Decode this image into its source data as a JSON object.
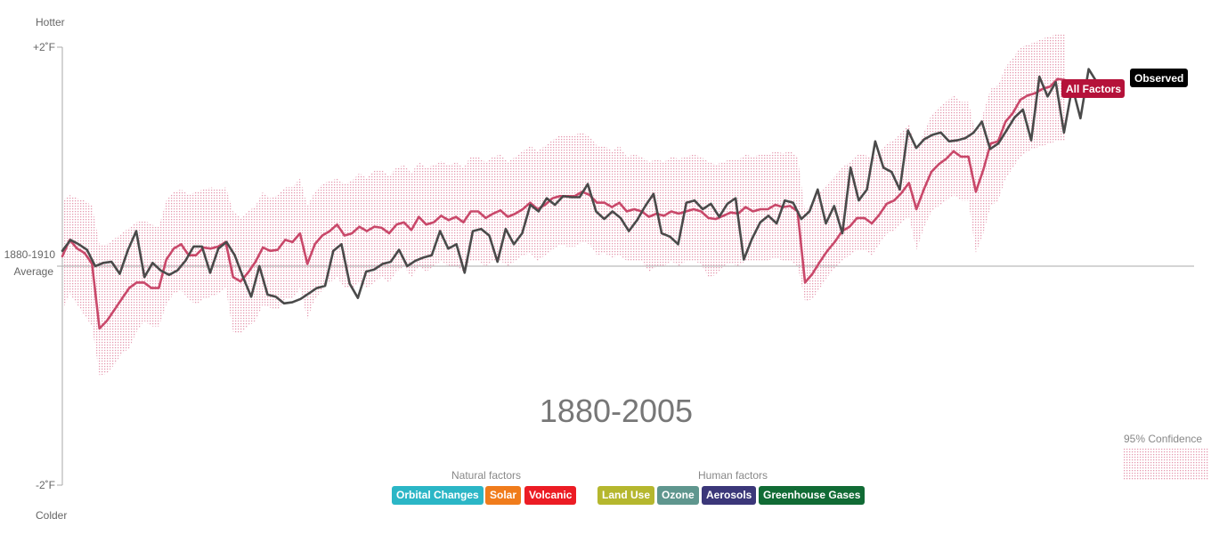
{
  "axis": {
    "top_label": "Hotter",
    "bottom_label": "Colder",
    "top_tick": "+2˚F",
    "bottom_tick": "-2˚F",
    "baseline_line1": "1880-1910",
    "baseline_line2": "Average"
  },
  "year_range_label": "1880-2005",
  "tags": {
    "all_factors": "All Factors",
    "observed": "Observed"
  },
  "colors": {
    "all_factors": "#c9486a",
    "observed": "#4a4a4a",
    "confidence": "#e59ab0",
    "all_factors_tag": "#b5123a",
    "observed_tag": "#000000"
  },
  "legend": {
    "natural_label": "Natural factors",
    "human_label": "Human factors",
    "natural": [
      {
        "label": "Orbital Changes",
        "color": "#2bb6c6"
      },
      {
        "label": "Solar",
        "color": "#f07c1c"
      },
      {
        "label": "Volcanic",
        "color": "#ec1c24"
      }
    ],
    "human": [
      {
        "label": "Land Use",
        "color": "#b5b72e"
      },
      {
        "label": "Ozone",
        "color": "#5f968e"
      },
      {
        "label": "Aerosols",
        "color": "#3b3779"
      },
      {
        "label": "Greenhouse Gases",
        "color": "#116b35"
      }
    ],
    "confidence_label": "95% Confidence"
  },
  "chart_data": {
    "type": "line",
    "ylim": [
      -2,
      2
    ],
    "y_unit": "°F relative to 1880-1910 average",
    "x_start": 1880,
    "x_end": 2005,
    "series": [
      {
        "name": "All Factors",
        "values": [
          0.09,
          0.24,
          0.16,
          0.12,
          0.02,
          -0.57,
          -0.5,
          -0.4,
          -0.3,
          -0.2,
          -0.15,
          -0.15,
          -0.2,
          -0.2,
          0.06,
          0.16,
          0.2,
          0.1,
          0.1,
          0.17,
          0.16,
          0.18,
          0.22,
          -0.1,
          -0.14,
          -0.06,
          0.04,
          0.17,
          0.14,
          0.15,
          0.24,
          0.22,
          0.3,
          0.02,
          0.2,
          0.28,
          0.32,
          0.38,
          0.28,
          0.3,
          0.36,
          0.32,
          0.36,
          0.35,
          0.3,
          0.38,
          0.4,
          0.33,
          0.45,
          0.38,
          0.4,
          0.46,
          0.42,
          0.45,
          0.4,
          0.5,
          0.5,
          0.44,
          0.48,
          0.51,
          0.45,
          0.48,
          0.52,
          0.58,
          0.52,
          0.56,
          0.62,
          0.64,
          0.64,
          0.64,
          0.68,
          0.65,
          0.58,
          0.58,
          0.54,
          0.58,
          0.5,
          0.52,
          0.5,
          0.45,
          0.48,
          0.46,
          0.5,
          0.48,
          0.5,
          0.52,
          0.5,
          0.44,
          0.43,
          0.46,
          0.49,
          0.48,
          0.54,
          0.5,
          0.52,
          0.52,
          0.56,
          0.54,
          0.55,
          0.5,
          -0.15,
          -0.07,
          0.04,
          0.14,
          0.22,
          0.32,
          0.36,
          0.44,
          0.44,
          0.39,
          0.47,
          0.57,
          0.6,
          0.67,
          0.76,
          0.52,
          0.7,
          0.86,
          0.93,
          0.98,
          1.05,
          1.0,
          1.0,
          0.68,
          0.88,
          1.12,
          1.14,
          1.32,
          1.4,
          1.52,
          1.56,
          1.58,
          1.62,
          1.64,
          1.71,
          1.7
        ],
        "x_end": 2005
      },
      {
        "name": "Observed",
        "values": [
          0.14,
          0.24,
          0.2,
          0.15,
          0.0,
          0.03,
          0.04,
          -0.07,
          0.15,
          0.32,
          -0.1,
          0.03,
          -0.04,
          -0.08,
          -0.04,
          0.05,
          0.18,
          0.18,
          -0.06,
          0.16,
          0.22,
          0.1,
          -0.1,
          -0.28,
          0.0,
          -0.26,
          -0.28,
          -0.34,
          -0.33,
          -0.3,
          -0.25,
          -0.2,
          -0.18,
          0.14,
          0.2,
          -0.16,
          -0.29,
          -0.05,
          -0.03,
          0.02,
          0.04,
          0.15,
          0.0,
          0.05,
          0.08,
          0.1,
          0.32,
          0.16,
          0.2,
          -0.06,
          0.32,
          0.34,
          0.28,
          0.04,
          0.34,
          0.2,
          0.3,
          0.56,
          0.5,
          0.62,
          0.56,
          0.64,
          0.63,
          0.63,
          0.75,
          0.5,
          0.43,
          0.5,
          0.44,
          0.32,
          0.42,
          0.55,
          0.66,
          0.3,
          0.27,
          0.2,
          0.58,
          0.6,
          0.52,
          0.57,
          0.45,
          0.57,
          0.62,
          0.06,
          0.25,
          0.4,
          0.46,
          0.39,
          0.6,
          0.58,
          0.43,
          0.5,
          0.7,
          0.39,
          0.55,
          0.3,
          0.9,
          0.6,
          0.7,
          1.14,
          0.9,
          0.86,
          0.7,
          1.24,
          1.08,
          1.16,
          1.2,
          1.22,
          1.14,
          1.15,
          1.17,
          1.22,
          1.32,
          1.07,
          1.12,
          1.24,
          1.36,
          1.43,
          1.15,
          1.73,
          1.55,
          1.68,
          1.22,
          1.64,
          1.35,
          1.8,
          1.68,
          1.65
        ],
        "x_end": 2010
      }
    ],
    "confidence_95": {
      "lower": [
        -0.4,
        -0.25,
        -0.35,
        -0.45,
        -0.55,
        -1.0,
        -0.98,
        -0.9,
        -0.8,
        -0.75,
        -0.6,
        -0.5,
        -0.55,
        -0.55,
        -0.35,
        -0.25,
        -0.22,
        -0.3,
        -0.35,
        -0.3,
        -0.28,
        -0.25,
        -0.2,
        -0.6,
        -0.62,
        -0.55,
        -0.5,
        -0.35,
        -0.38,
        -0.4,
        -0.3,
        -0.3,
        -0.2,
        -0.48,
        -0.3,
        -0.22,
        -0.15,
        -0.1,
        -0.2,
        -0.2,
        -0.15,
        -0.2,
        -0.15,
        -0.1,
        -0.15,
        -0.05,
        0.0,
        -0.1,
        0.0,
        -0.05,
        0.0,
        0.05,
        0.0,
        0.0,
        -0.05,
        0.05,
        0.05,
        0.0,
        0.05,
        0.05,
        0.0,
        0.05,
        0.1,
        0.12,
        0.05,
        0.1,
        0.15,
        0.2,
        0.18,
        0.18,
        0.22,
        0.2,
        0.1,
        0.12,
        0.08,
        0.1,
        0.05,
        0.05,
        0.05,
        -0.05,
        0.0,
        0.0,
        0.05,
        0.0,
        0.05,
        0.05,
        0.02,
        -0.1,
        -0.08,
        0.0,
        0.03,
        0.0,
        0.05,
        0.05,
        0.05,
        0.05,
        0.08,
        0.05,
        0.05,
        0.0,
        -0.32,
        -0.3,
        -0.2,
        -0.1,
        -0.02,
        0.05,
        0.1,
        0.15,
        0.15,
        0.1,
        0.2,
        0.3,
        0.32,
        0.4,
        0.45,
        0.15,
        0.35,
        0.5,
        0.55,
        0.6,
        0.65,
        0.6,
        0.6,
        0.12,
        0.3,
        0.55,
        0.6,
        0.8,
        0.9,
        1.0,
        1.05,
        1.08,
        1.1,
        1.12,
        1.15,
        1.15
      ],
      "upper": [
        0.6,
        0.65,
        0.62,
        0.6,
        0.55,
        0.2,
        0.2,
        0.25,
        0.3,
        0.35,
        0.4,
        0.42,
        0.38,
        0.36,
        0.6,
        0.68,
        0.7,
        0.65,
        0.68,
        0.7,
        0.72,
        0.7,
        0.72,
        0.5,
        0.44,
        0.5,
        0.55,
        0.68,
        0.62,
        0.65,
        0.72,
        0.72,
        0.8,
        0.55,
        0.68,
        0.75,
        0.78,
        0.8,
        0.75,
        0.78,
        0.85,
        0.8,
        0.88,
        0.88,
        0.82,
        0.9,
        0.92,
        0.85,
        0.95,
        0.9,
        0.92,
        0.96,
        0.92,
        0.95,
        0.9,
        1.0,
        1.0,
        0.95,
        1.0,
        1.02,
        0.95,
        1.0,
        1.05,
        1.1,
        1.05,
        1.1,
        1.15,
        1.2,
        1.2,
        1.2,
        1.22,
        1.18,
        1.1,
        1.1,
        1.05,
        1.1,
        1.0,
        1.02,
        1.0,
        0.95,
        0.98,
        0.95,
        1.0,
        0.98,
        1.0,
        1.02,
        1.0,
        0.95,
        0.93,
        0.95,
        0.98,
        0.97,
        1.02,
        1.0,
        1.02,
        1.02,
        1.05,
        1.03,
        1.05,
        1.0,
        0.5,
        0.58,
        0.68,
        0.75,
        0.82,
        0.9,
        0.95,
        1.02,
        1.02,
        0.98,
        1.05,
        1.12,
        1.15,
        1.22,
        1.3,
        1.05,
        1.22,
        1.38,
        1.45,
        1.5,
        1.56,
        1.5,
        1.5,
        1.2,
        1.4,
        1.62,
        1.65,
        1.82,
        1.9,
        2.0,
        2.02,
        2.05,
        2.08,
        2.1,
        2.12,
        2.12
      ]
    }
  }
}
